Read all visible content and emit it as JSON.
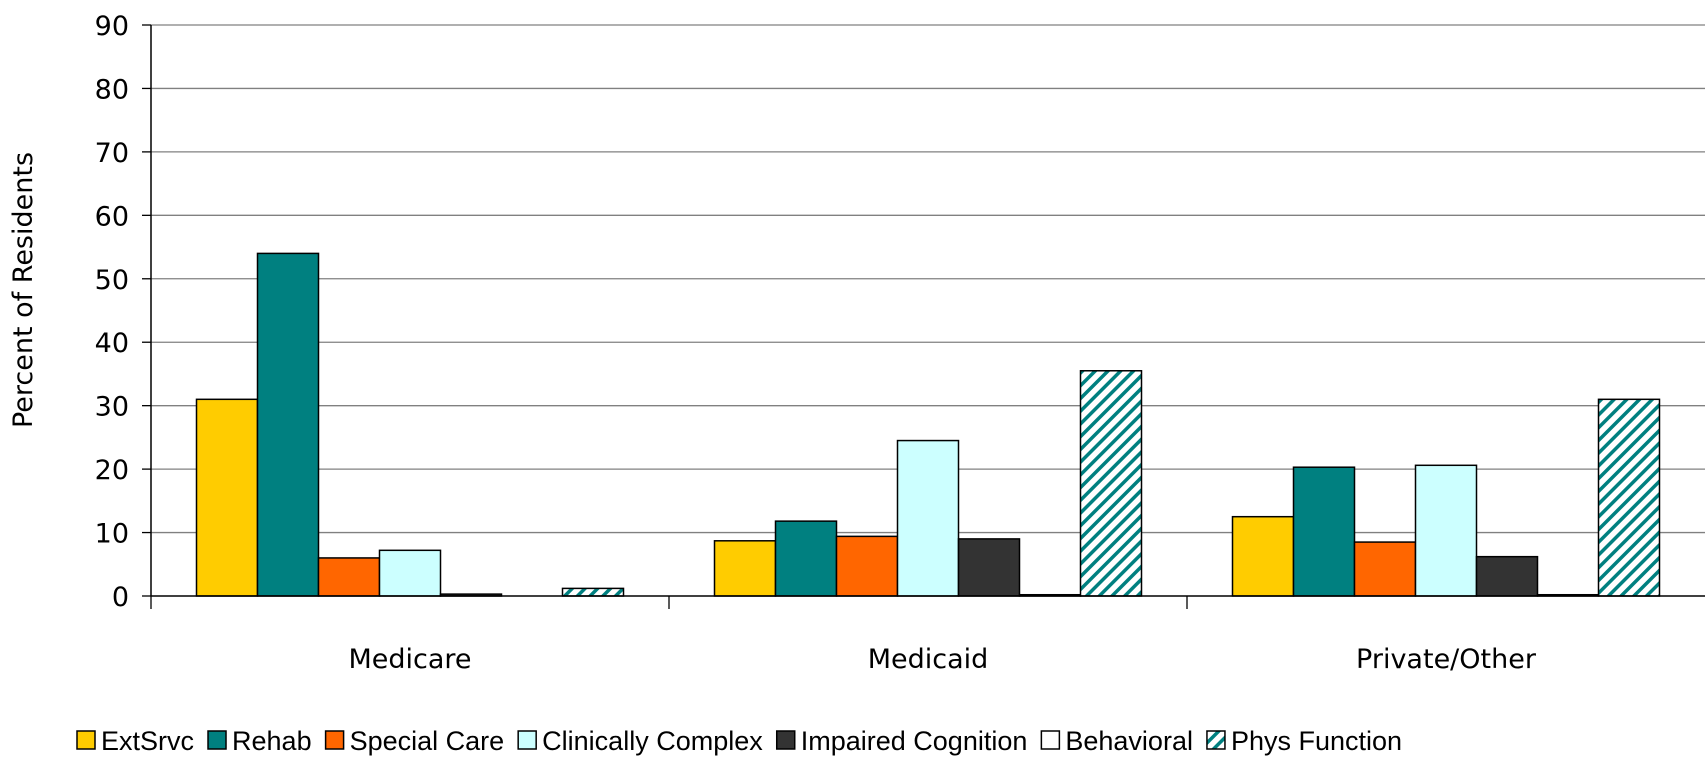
{
  "chart_data": {
    "type": "bar",
    "title": "",
    "xlabel": "",
    "ylabel": "Percent of Residents",
    "ylim": [
      0,
      90
    ],
    "yticks": [
      0,
      10,
      20,
      30,
      40,
      50,
      60,
      70,
      80,
      90
    ],
    "grid": true,
    "legend_position": "bottom",
    "categories": [
      "Medicare",
      "Medicaid",
      "Private/Other"
    ],
    "series": [
      {
        "name": "ExtSrvc",
        "values": [
          31,
          8.7,
          12.5
        ],
        "color": "#ffcc00",
        "pattern": "solid"
      },
      {
        "name": "Rehab",
        "values": [
          54,
          11.8,
          20.3
        ],
        "color": "#008080",
        "pattern": "solid"
      },
      {
        "name": "Special Care",
        "values": [
          6,
          9.4,
          8.5
        ],
        "color": "#ff6600",
        "pattern": "solid"
      },
      {
        "name": "Clinically Complex",
        "values": [
          7.2,
          24.5,
          20.6
        ],
        "color": "#ccffff",
        "pattern": "solid"
      },
      {
        "name": "Impaired Cognition",
        "values": [
          0.3,
          9,
          6.2
        ],
        "color": "#333333",
        "pattern": "solid"
      },
      {
        "name": "Behavioral",
        "values": [
          0,
          0.2,
          0.2
        ],
        "color": "#ffffff",
        "pattern": "solid"
      },
      {
        "name": "Phys Function",
        "values": [
          1.2,
          35.5,
          31
        ],
        "color": "#008080",
        "pattern": "hatch"
      }
    ]
  }
}
